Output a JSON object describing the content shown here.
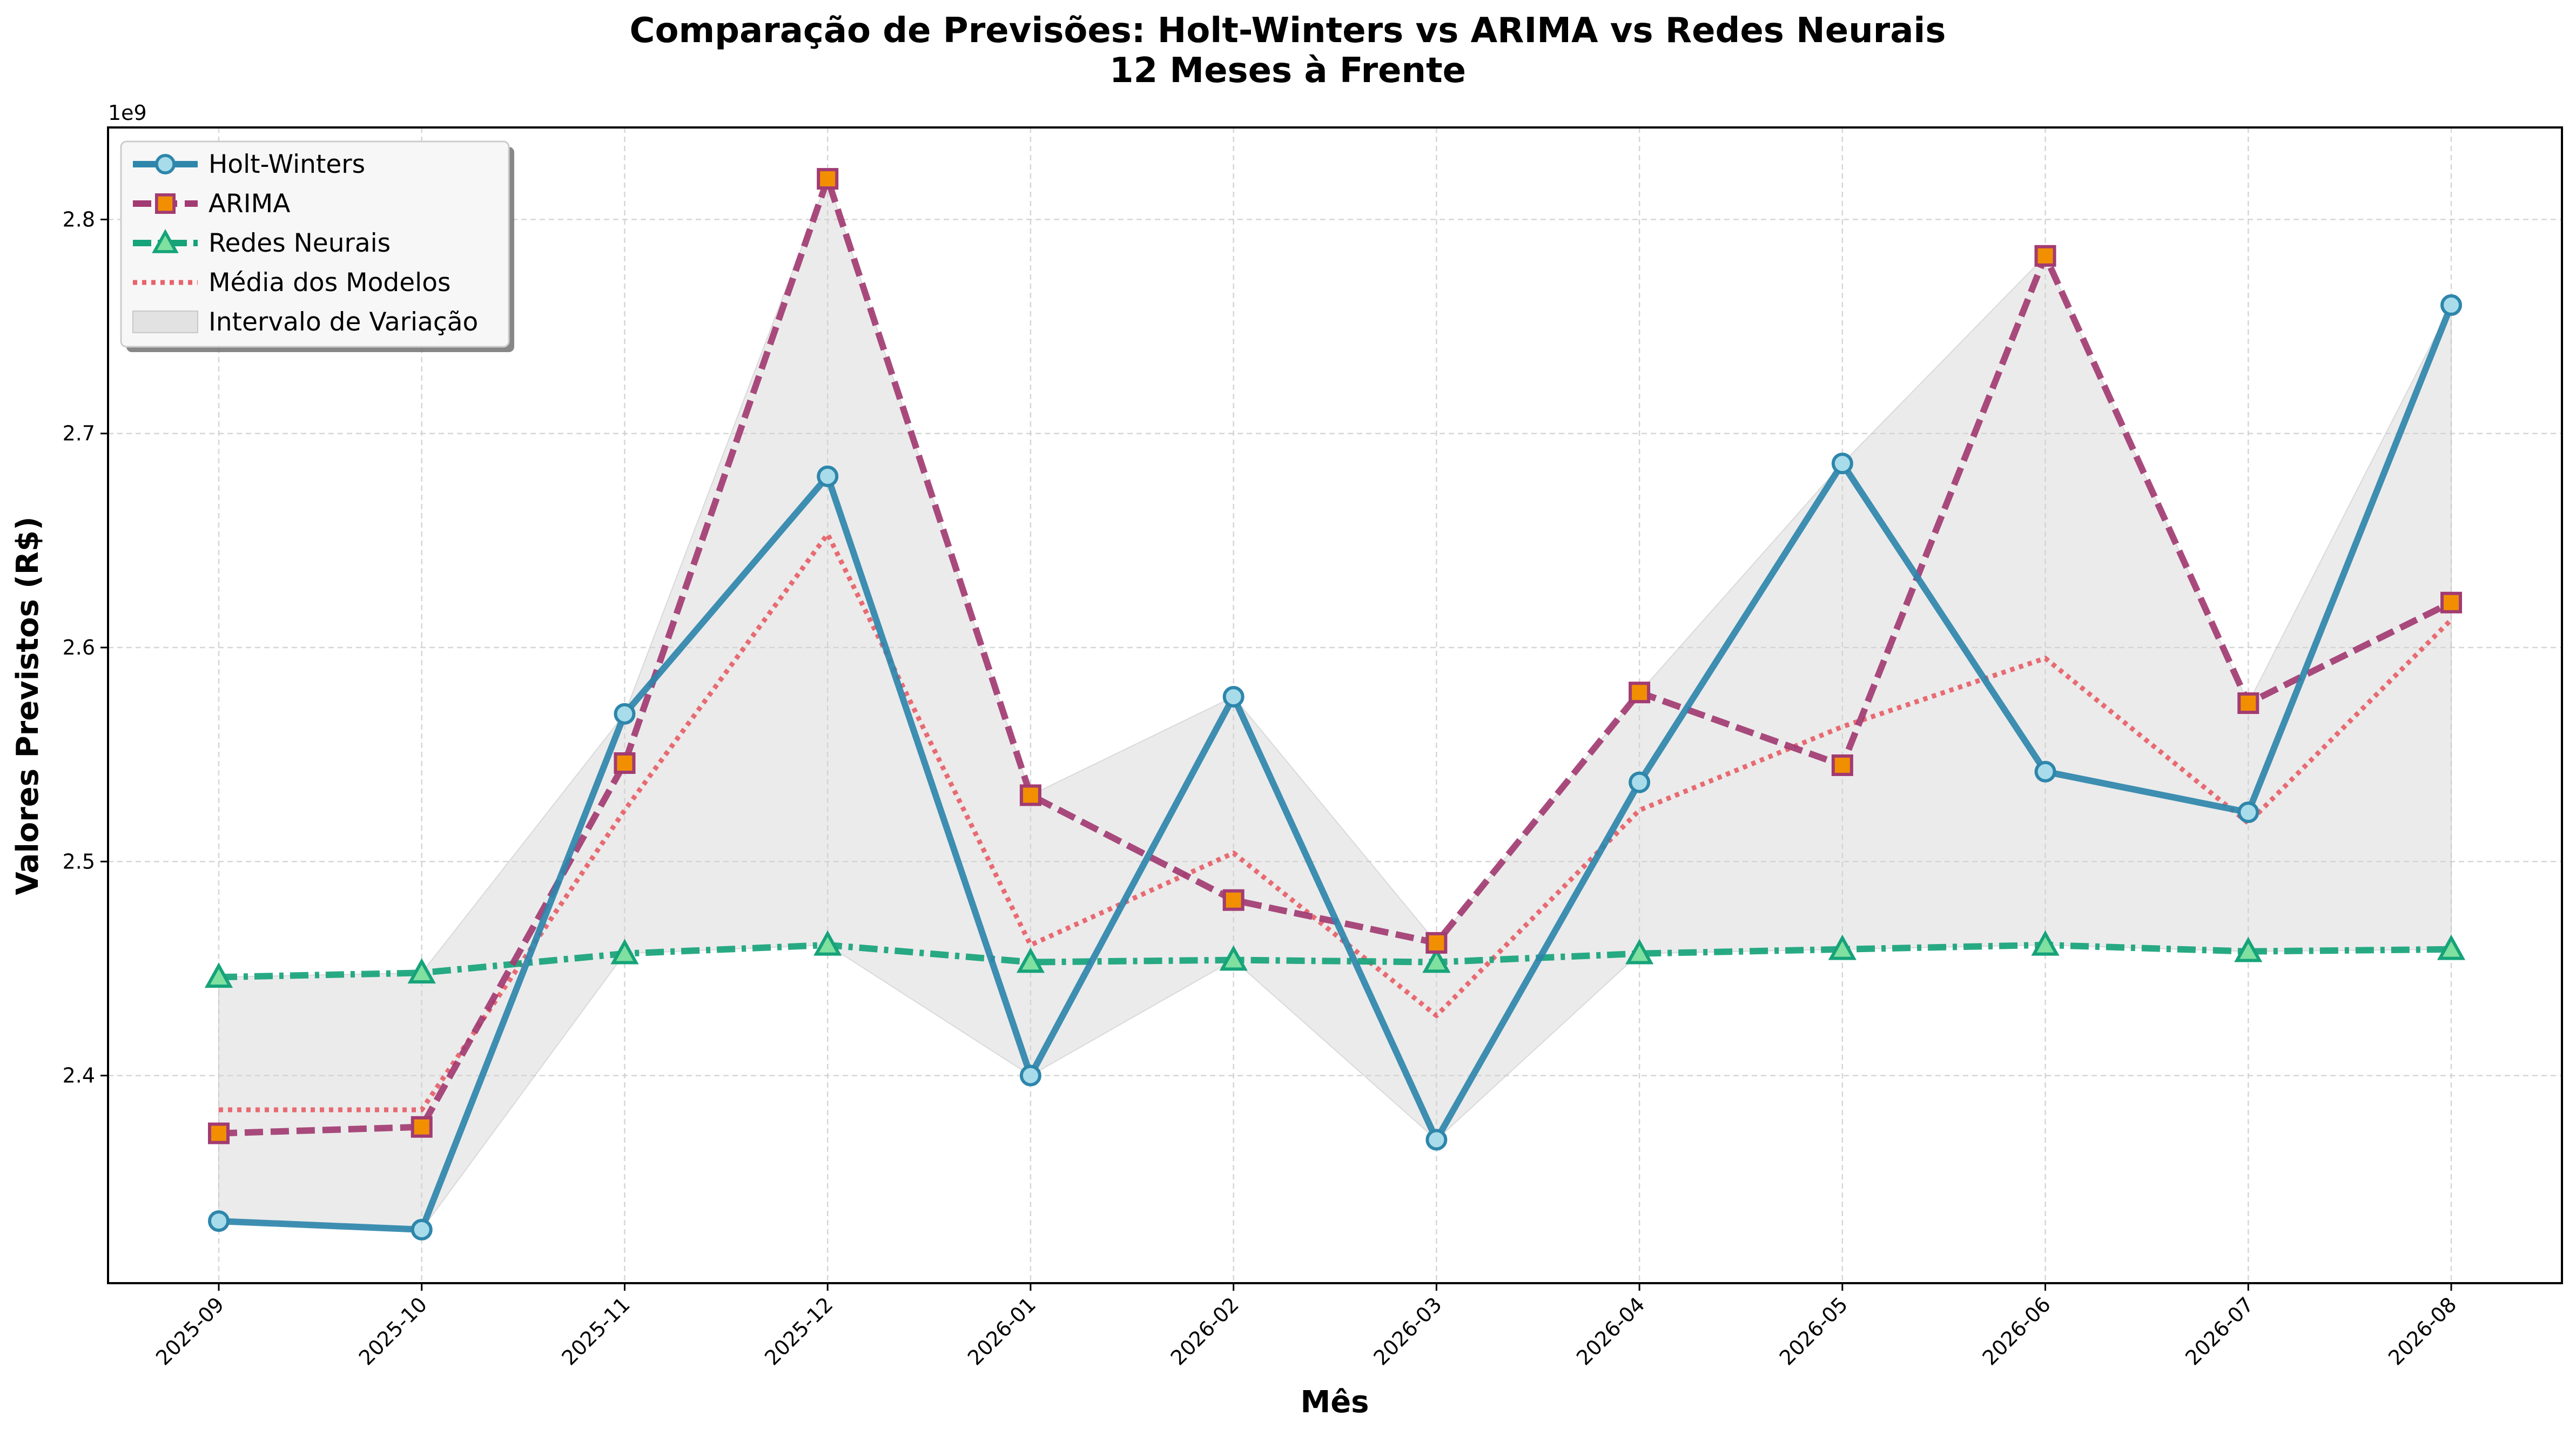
{
  "chart_data": {
    "type": "line",
    "title": "Comparação de Previsões: Holt-Winters vs ARIMA vs Redes Neurais",
    "subtitle": "12 Meses à Frente",
    "xlabel": "Mês",
    "ylabel": "Valores Previstos (R$)",
    "y_offset_label": "1e9",
    "categories": [
      "2025-09",
      "2025-10",
      "2025-11",
      "2025-12",
      "2026-01",
      "2026-02",
      "2026-03",
      "2026-04",
      "2026-05",
      "2026-06",
      "2026-07",
      "2026-08"
    ],
    "yticks": [
      2.4,
      2.5,
      2.6,
      2.7,
      2.8
    ],
    "ylim": [
      2.303,
      2.843
    ],
    "grid": true,
    "legend_position": "top-left",
    "series": [
      {
        "name": "Holt-Winters",
        "color": "#2e86ab",
        "style": "solid",
        "marker": "circle",
        "values": [
          2.332,
          2.328,
          2.569,
          2.68,
          2.4,
          2.577,
          2.37,
          2.537,
          2.686,
          2.542,
          2.523,
          2.76
        ]
      },
      {
        "name": "ARIMA",
        "color": "#a23b72",
        "style": "dashed",
        "marker": "square",
        "values": [
          2.373,
          2.376,
          2.546,
          2.819,
          2.531,
          2.482,
          2.462,
          2.579,
          2.545,
          2.783,
          2.574,
          2.621
        ]
      },
      {
        "name": "Redes Neurais",
        "color": "#16a37a",
        "style": "dashdot",
        "marker": "triangle",
        "values": [
          2.446,
          2.448,
          2.457,
          2.461,
          2.453,
          2.454,
          2.453,
          2.457,
          2.459,
          2.461,
          2.458,
          2.459
        ]
      },
      {
        "name": "Média dos Modelos",
        "color": "#e8636b",
        "style": "dotted",
        "marker": "none",
        "values": [
          2.384,
          2.384,
          2.524,
          2.653,
          2.461,
          2.504,
          2.428,
          2.524,
          2.563,
          2.595,
          2.518,
          2.613
        ]
      }
    ],
    "band": {
      "name": "Intervalo de Variação",
      "color": "#d3d3d3",
      "description_source": "min/max of the three models"
    }
  }
}
